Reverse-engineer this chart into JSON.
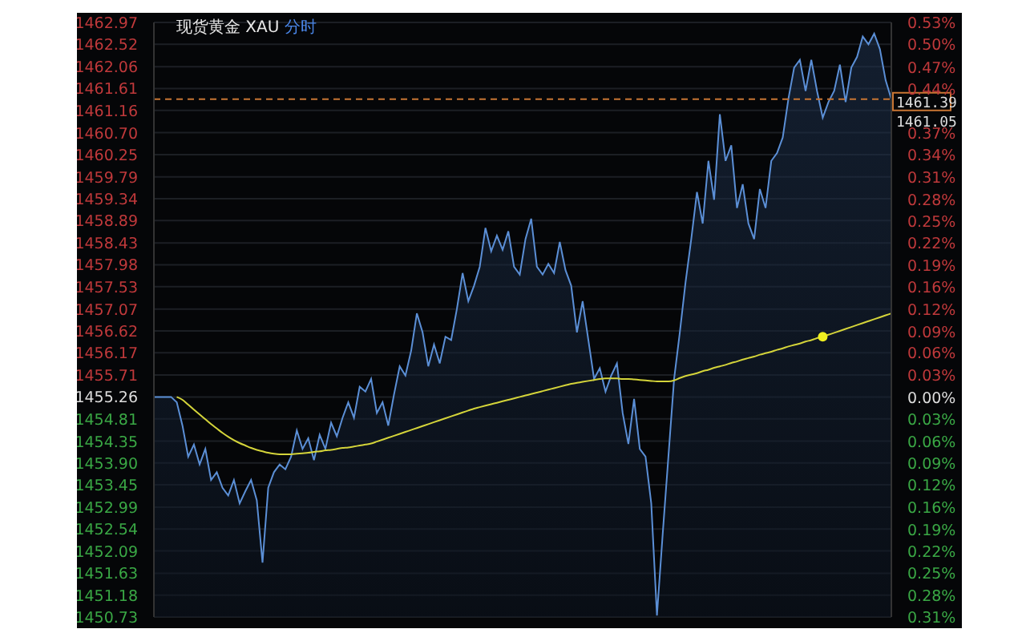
{
  "chart_data": {
    "type": "area",
    "title": "现货黄金 XAU",
    "subtitle": "分时",
    "categories": [
      null,
      null,
      null,
      null,
      null,
      null,
      null,
      null,
      null,
      null,
      null,
      null,
      null,
      null,
      null,
      null,
      null,
      null,
      null,
      null,
      null,
      null,
      null,
      null,
      null,
      null,
      null,
      null,
      null,
      null,
      null,
      null,
      null,
      null,
      null,
      null,
      null,
      null,
      null,
      null,
      null,
      null,
      null,
      null,
      null,
      null,
      null,
      null,
      null,
      null,
      null,
      null,
      null,
      null,
      null,
      null,
      null,
      null,
      null,
      null,
      null,
      null,
      null,
      null,
      null,
      null,
      null,
      null,
      null,
      null,
      null,
      null,
      null,
      null,
      null,
      null,
      null,
      null,
      null,
      null,
      null,
      null,
      null,
      null,
      null,
      null,
      null,
      null,
      null,
      null,
      null,
      null,
      null,
      null,
      null,
      null,
      null,
      null,
      null,
      null,
      null,
      null,
      null,
      null,
      null,
      null,
      null,
      null,
      null,
      null,
      null,
      null,
      null,
      null,
      null,
      null,
      null,
      null,
      null,
      null,
      null,
      null,
      null,
      null,
      null,
      null,
      null,
      null,
      null,
      null
    ],
    "series": [
      {
        "color": "#5b8fd6",
        "values": [
          1455.26,
          1455.26,
          1455.26,
          1455.26,
          1455.15,
          1454.67,
          1454.03,
          1454.28,
          1453.87,
          1454.19,
          1453.55,
          1453.71,
          1453.39,
          1453.23,
          1453.55,
          1453.07,
          1453.32,
          1453.55,
          1453.13,
          1451.85,
          1453.39,
          1453.71,
          1453.87,
          1453.77,
          1454.03,
          1454.57,
          1454.19,
          1454.41,
          1453.96,
          1454.48,
          1454.19,
          1454.73,
          1454.45,
          1454.83,
          1455.15,
          1454.83,
          1455.47,
          1455.37,
          1455.63,
          1454.93,
          1455.15,
          1454.67,
          1455.31,
          1455.89,
          1455.7,
          1456.21,
          1456.98,
          1456.59,
          1455.89,
          1456.34,
          1455.95,
          1456.5,
          1456.43,
          1457.07,
          1457.81,
          1457.23,
          1457.55,
          1457.94,
          1458.74,
          1458.26,
          1458.58,
          1458.29,
          1458.67,
          1457.94,
          1457.78,
          1458.51,
          1458.93,
          1457.94,
          1457.78,
          1458.0,
          1457.81,
          1458.45,
          1457.87,
          1457.55,
          1456.59,
          1457.23,
          1456.43,
          1455.63,
          1455.85,
          1455.37,
          1455.7,
          1455.95,
          1454.93,
          1454.29,
          1455.22,
          1454.19,
          1454.03,
          1453.07,
          1450.76,
          1452.43,
          1454.03,
          1455.63,
          1456.59,
          1457.62,
          1458.51,
          1459.48,
          1458.83,
          1460.12,
          1459.32,
          1461.08,
          1460.12,
          1460.44,
          1459.15,
          1459.64,
          1458.83,
          1458.51,
          1459.54,
          1459.15,
          1460.12,
          1460.28,
          1460.6,
          1461.4,
          1462.04,
          1462.2,
          1461.56,
          1462.2,
          1461.56,
          1461.01,
          1461.33,
          1461.56,
          1462.1,
          1461.33,
          1462.04,
          1462.26,
          1462.68,
          1462.52,
          1462.74,
          1462.42,
          1461.78,
          1461.39
        ]
      },
      {
        "type": "line",
        "color": "#d4d43a",
        "values": [
          null,
          null,
          null,
          null,
          1455.26,
          1455.2,
          1455.1,
          1455.0,
          1454.9,
          1454.8,
          1454.7,
          1454.61,
          1454.52,
          1454.44,
          1454.37,
          1454.31,
          1454.26,
          1454.21,
          1454.17,
          1454.14,
          1454.11,
          1454.09,
          1454.08,
          1454.08,
          1454.08,
          1454.09,
          1454.1,
          1454.11,
          1454.13,
          1454.14,
          1454.16,
          1454.17,
          1454.19,
          1454.21,
          1454.22,
          1454.24,
          1454.26,
          1454.28,
          1454.3,
          1454.34,
          1454.38,
          1454.42,
          1454.46,
          1454.5,
          1454.54,
          1454.58,
          1454.62,
          1454.66,
          1454.7,
          1454.74,
          1454.78,
          1454.82,
          1454.86,
          1454.9,
          1454.94,
          1454.98,
          1455.02,
          1455.05,
          1455.08,
          1455.11,
          1455.14,
          1455.17,
          1455.2,
          1455.23,
          1455.26,
          1455.29,
          1455.32,
          1455.35,
          1455.38,
          1455.41,
          1455.44,
          1455.47,
          1455.5,
          1455.53,
          1455.55,
          1455.57,
          1455.59,
          1455.61,
          1455.63,
          1455.64,
          1455.64,
          1455.64,
          1455.63,
          1455.63,
          1455.62,
          1455.61,
          1455.6,
          1455.59,
          1455.58,
          1455.58,
          1455.58,
          1455.6,
          1455.65,
          1455.69,
          1455.72,
          1455.75,
          1455.79,
          1455.82,
          1455.86,
          1455.89,
          1455.92,
          1455.96,
          1455.99,
          1456.03,
          1456.06,
          1456.09,
          1456.13,
          1456.16,
          1456.19,
          1456.23,
          1456.26,
          1456.3,
          1456.33,
          1456.36,
          1456.4,
          1456.43,
          1456.47,
          1456.5,
          1456.54,
          1456.58,
          1456.62,
          1456.66,
          1456.7,
          1456.74,
          1456.78,
          1456.82,
          1456.86,
          1456.9,
          1456.94,
          1456.98
        ]
      },
      {
        "type": "scatter",
        "color": "#f0f020",
        "marker": "circle",
        "values": [
          null,
          null,
          null,
          null,
          null,
          null,
          null,
          null,
          null,
          null,
          null,
          null,
          null,
          null,
          null,
          null,
          null,
          null,
          null,
          null,
          null,
          null,
          null,
          null,
          null,
          null,
          null,
          null,
          null,
          null,
          null,
          null,
          null,
          null,
          null,
          null,
          null,
          null,
          null,
          null,
          null,
          null,
          null,
          null,
          null,
          null,
          null,
          null,
          null,
          null,
          null,
          null,
          null,
          null,
          null,
          null,
          null,
          null,
          null,
          null,
          null,
          null,
          null,
          null,
          null,
          null,
          null,
          null,
          null,
          null,
          null,
          null,
          null,
          null,
          null,
          null,
          null,
          null,
          null,
          null,
          null,
          null,
          null,
          null,
          null,
          null,
          null,
          null,
          null,
          null,
          null,
          null,
          null,
          null,
          null,
          null,
          null,
          null,
          null,
          null,
          null,
          null,
          null,
          null,
          null,
          null,
          null,
          null,
          null,
          null,
          null,
          null,
          null,
          null,
          null,
          null,
          null,
          1456.5,
          null,
          null,
          null,
          null,
          null,
          null,
          null,
          null,
          null,
          null,
          null,
          null
        ]
      }
    ],
    "ylim": [
      1450.73,
      1462.97
    ],
    "yticks": [
      1462.97,
      1462.52,
      1462.06,
      1461.61,
      1461.16,
      {
        "value": 1460.7,
        "label": "1460.70"
      },
      1460.25,
      1459.79,
      1459.34,
      1458.89,
      1458.43,
      1457.98,
      1457.53,
      1457.07,
      1456.62,
      1456.17,
      1455.71,
      1455.26,
      1454.81,
      1454.35,
      {
        "value": 1453.9,
        "label": "1453.90"
      },
      1453.45,
      1452.99,
      1452.54,
      1452.09,
      1451.63,
      1451.18,
      1450.73
    ],
    "y2lim": [
      -0.311,
      0.53
    ],
    "y2ticks": [
      {
        "value": 0.53,
        "label": "0.53%"
      },
      {
        "value": 0.499,
        "label": "0.50%"
      },
      {
        "value": 0.467,
        "label": "0.47%"
      },
      {
        "value": 0.436,
        "label": "0.44%"
      },
      {
        "value": 0.405,
        "label": null
      },
      {
        "value": 0.374,
        "label": "0.37%"
      },
      {
        "value": 0.343,
        "label": "0.34%"
      },
      {
        "value": 0.311,
        "label": "0.31%"
      },
      {
        "value": 0.28,
        "label": "0.28%"
      },
      {
        "value": 0.249,
        "label": "0.25%"
      },
      {
        "value": 0.218,
        "label": "0.22%"
      },
      {
        "value": 0.187,
        "label": "0.19%"
      },
      {
        "value": 0.156,
        "label": "0.16%"
      },
      {
        "value": 0.124,
        "label": "0.12%"
      },
      {
        "value": 0.093,
        "label": "0.09%"
      },
      {
        "value": 0.063,
        "label": "0.06%"
      },
      {
        "value": 0.031,
        "label": "0.03%"
      },
      {
        "value": 0,
        "label": "0.00%"
      },
      {
        "value": -0.031,
        "label": "0.03%"
      },
      {
        "value": -0.063,
        "label": "0.06%"
      },
      {
        "value": -0.093,
        "label": "0.09%"
      },
      {
        "value": -0.124,
        "label": "0.12%"
      },
      {
        "value": -0.156,
        "label": "0.16%"
      },
      {
        "value": -0.187,
        "label": "0.19%"
      },
      {
        "value": -0.218,
        "label": "0.22%"
      },
      {
        "value": -0.249,
        "label": "0.25%"
      },
      {
        "value": -0.28,
        "label": "0.28%"
      },
      {
        "value": -0.311,
        "label": "0.31%"
      }
    ],
    "ref_lines": [
      {
        "axis": "y",
        "value": 1461.39,
        "label": "1461.39",
        "color": "#c87533",
        "line_style": "dashed"
      }
    ],
    "annotations": [
      "1461.05"
    ],
    "grid": "y"
  }
}
